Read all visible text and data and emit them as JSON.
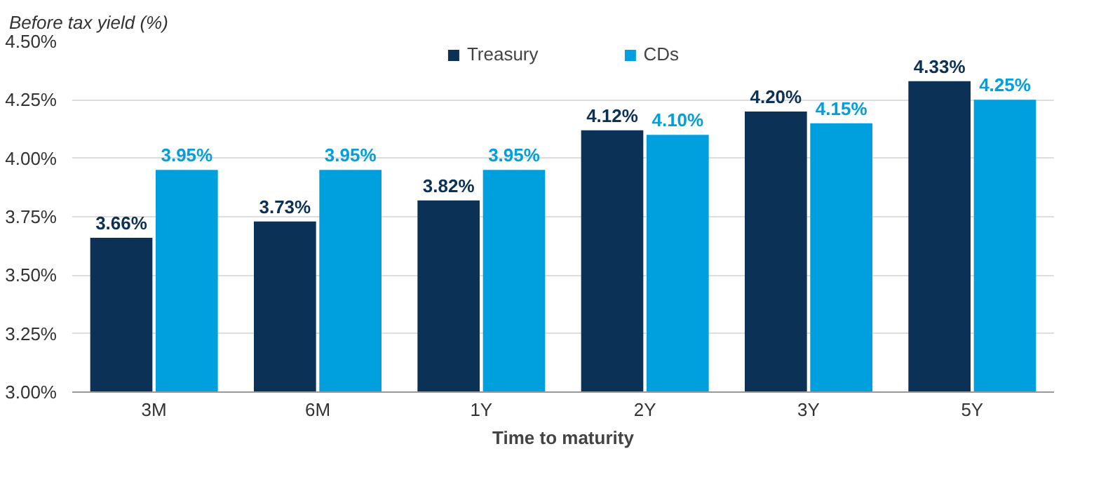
{
  "chart_data": {
    "type": "bar",
    "xlabel": "Time to maturity",
    "ylabel": "Before tax yield (%)",
    "categories": [
      "3M",
      "6M",
      "1Y",
      "2Y",
      "3Y",
      "5Y"
    ],
    "series": [
      {
        "name": "Treasury",
        "color": "#0c3157",
        "values": [
          3.66,
          3.73,
          3.82,
          4.12,
          4.2,
          4.33
        ],
        "value_labels": [
          "3.66%",
          "3.73%",
          "3.82%",
          "4.12%",
          "4.20%",
          "4.33%"
        ]
      },
      {
        "name": "CDs",
        "color": "#00a0df",
        "values": [
          3.95,
          3.95,
          3.95,
          4.1,
          4.15,
          4.25
        ],
        "value_labels": [
          "3.95%",
          "3.95%",
          "3.95%",
          "4.10%",
          "4.15%",
          "4.25%"
        ]
      }
    ],
    "ylim": [
      3.0,
      4.5
    ],
    "yticks": [
      {
        "value": 3.0,
        "label": "3.00%"
      },
      {
        "value": 3.25,
        "label": "3.25%"
      },
      {
        "value": 3.5,
        "label": "3.50%"
      },
      {
        "value": 3.75,
        "label": "3.75%"
      },
      {
        "value": 4.0,
        "label": "4.00%"
      },
      {
        "value": 4.25,
        "label": "4.25%"
      },
      {
        "value": 4.5,
        "label": "4.50%"
      }
    ],
    "grid": "y",
    "legend": "top"
  }
}
